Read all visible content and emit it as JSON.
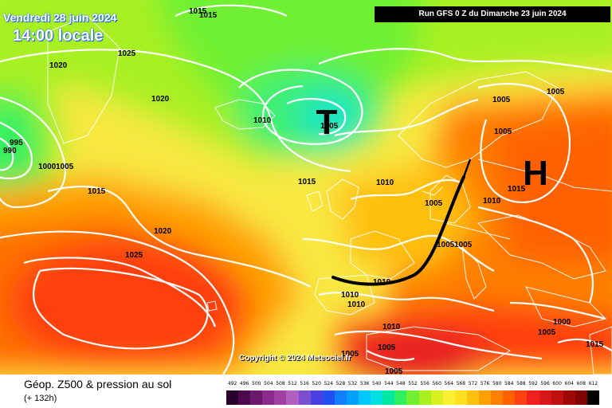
{
  "header": {
    "date": "Vendredi 28 juin 2024",
    "time": "14:00 locale",
    "run": "Run GFS 0 Z du Dimanche 23 juin 2024"
  },
  "footer": {
    "title": "Géop. Z500 & pression au sol",
    "subtitle": "(+ 132h)"
  },
  "copyright": "Copyright © 2024 Meteociel.fr",
  "pressure_systems": {
    "low": "T",
    "high": "H"
  },
  "isobar_labels": [
    "1015",
    "1015",
    "1025",
    "1020",
    "1020",
    "995",
    "990",
    "1000",
    "1005",
    "1015",
    "1010",
    "1005",
    "1015",
    "1010",
    "1005",
    "1010",
    "1015",
    "1005",
    "1020",
    "1025",
    "1010",
    "1010",
    "1010",
    "1005",
    "1005",
    "1005",
    "1010",
    "1005",
    "1005",
    "1000",
    "1005",
    "1015",
    "1005",
    "1005"
  ],
  "legend": {
    "values": [
      "492",
      "496",
      "500",
      "504",
      "508",
      "512",
      "516",
      "520",
      "524",
      "528",
      "532",
      "536",
      "540",
      "544",
      "548",
      "552",
      "556",
      "560",
      "564",
      "568",
      "572",
      "576",
      "580",
      "584",
      "588",
      "592",
      "596",
      "600",
      "604",
      "608",
      "612"
    ],
    "colors": [
      "#2a002a",
      "#4b0a4b",
      "#6b1a6b",
      "#8a2a8a",
      "#a040a0",
      "#b060c0",
      "#7a50d0",
      "#4a40e0",
      "#2050f0",
      "#1080ff",
      "#00a0ff",
      "#00c8ff",
      "#00e0e0",
      "#00e8a0",
      "#30f060",
      "#70f030",
      "#a8f020",
      "#d8f020",
      "#f8f030",
      "#ffe020",
      "#ffc010",
      "#ffa000",
      "#ff8000",
      "#ff6000",
      "#ff4010",
      "#f02020",
      "#d81818",
      "#c01010",
      "#a00808",
      "#800404",
      "#000000"
    ]
  },
  "colors": {
    "isobar": "#ffffff",
    "front": "#000000",
    "title_glow": "#1a5fff"
  }
}
